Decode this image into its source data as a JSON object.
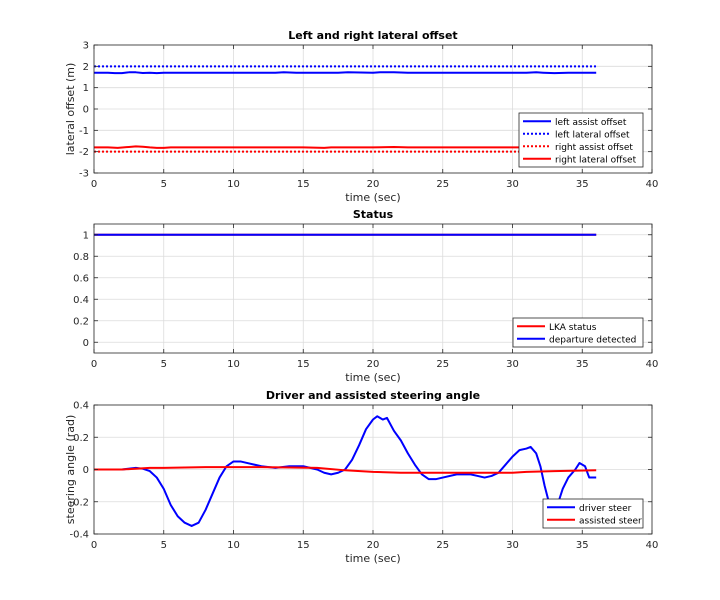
{
  "colors": {
    "background": "#ffffff",
    "axes": "#262626",
    "grid": "#dcdcdc",
    "blue": "#0000ff",
    "red": "#ff0000",
    "legend_border": "#262626"
  },
  "chart_data": [
    {
      "type": "line",
      "title": "Left and right lateral offset",
      "xlabel": "time (sec)",
      "ylabel": "lateral offset (m)",
      "xlim": [
        0,
        40
      ],
      "ylim": [
        -3,
        3
      ],
      "xticks": [
        0,
        5,
        10,
        15,
        20,
        25,
        30,
        35,
        40
      ],
      "yticks": [
        -3,
        -2,
        -1,
        0,
        1,
        2,
        3
      ],
      "xtick_labels": [
        "0",
        "5",
        "10",
        "15",
        "20",
        "25",
        "30",
        "35",
        "40"
      ],
      "ytick_labels": [
        "-3",
        "-2",
        "-1",
        "0",
        "1",
        "2",
        "3"
      ],
      "grid": true,
      "legend_position": "bottom-right",
      "series": [
        {
          "name": "left assist offset",
          "color": "blue",
          "style": "solid",
          "x": [
            0,
            1,
            1.5,
            2,
            2.5,
            3,
            3.5,
            4,
            4.5,
            5,
            7,
            10,
            13,
            13.6,
            14.5,
            16,
            17.5,
            18.2,
            20,
            20.5,
            21.5,
            22.5,
            30,
            31,
            31.7,
            32.2,
            33,
            34,
            36
          ],
          "y": [
            1.7,
            1.7,
            1.68,
            1.68,
            1.72,
            1.72,
            1.69,
            1.7,
            1.68,
            1.7,
            1.7,
            1.7,
            1.7,
            1.72,
            1.7,
            1.7,
            1.7,
            1.72,
            1.7,
            1.72,
            1.72,
            1.7,
            1.7,
            1.7,
            1.72,
            1.7,
            1.68,
            1.7,
            1.7
          ]
        },
        {
          "name": "left lateral offset",
          "color": "blue",
          "style": "dotted",
          "x": [
            0,
            36
          ],
          "y": [
            2,
            2
          ]
        },
        {
          "name": "right assist offset",
          "color": "red",
          "style": "dotted",
          "x": [
            0,
            36
          ],
          "y": [
            -2,
            -2
          ]
        },
        {
          "name": "right lateral offset",
          "color": "red",
          "style": "solid",
          "x": [
            0,
            1,
            1.7,
            2.5,
            3,
            3.5,
            4,
            4.5,
            5,
            5.5,
            10,
            15,
            16.5,
            17,
            18,
            20,
            21.5,
            22.5,
            25,
            30,
            31.5,
            32,
            33,
            36
          ],
          "y": [
            -1.8,
            -1.8,
            -1.82,
            -1.78,
            -1.75,
            -1.77,
            -1.8,
            -1.82,
            -1.82,
            -1.8,
            -1.8,
            -1.8,
            -1.82,
            -1.8,
            -1.8,
            -1.8,
            -1.78,
            -1.8,
            -1.8,
            -1.8,
            -1.8,
            -1.78,
            -1.8,
            -1.8
          ]
        }
      ]
    },
    {
      "type": "line",
      "title": "Status",
      "xlabel": "time (sec)",
      "ylabel": "",
      "xlim": [
        0,
        40
      ],
      "ylim": [
        -0.1,
        1.1
      ],
      "xticks": [
        0,
        5,
        10,
        15,
        20,
        25,
        30,
        35,
        40
      ],
      "yticks": [
        0,
        0.2,
        0.4,
        0.6,
        0.8,
        1
      ],
      "xtick_labels": [
        "0",
        "5",
        "10",
        "15",
        "20",
        "25",
        "30",
        "35",
        "40"
      ],
      "ytick_labels": [
        "0",
        "0.2",
        "0.4",
        "0.6",
        "0.8",
        "1"
      ],
      "grid": true,
      "legend_position": "bottom-right",
      "series": [
        {
          "name": "LKA status",
          "color": "red",
          "style": "solid",
          "x": [
            0,
            36
          ],
          "y": [
            1,
            1
          ]
        },
        {
          "name": "departure detected",
          "color": "blue",
          "style": "solid",
          "x": [
            0,
            36
          ],
          "y": [
            1,
            1
          ]
        }
      ]
    },
    {
      "type": "line",
      "title": "Driver and assisted steering angle",
      "xlabel": "time (sec)",
      "ylabel": "steering angle (rad)",
      "xlim": [
        0,
        40
      ],
      "ylim": [
        -0.4,
        0.4
      ],
      "xticks": [
        0,
        5,
        10,
        15,
        20,
        25,
        30,
        35,
        40
      ],
      "yticks": [
        -0.4,
        -0.2,
        0,
        0.2,
        0.4
      ],
      "xtick_labels": [
        "0",
        "5",
        "10",
        "15",
        "20",
        "25",
        "30",
        "35",
        "40"
      ],
      "ytick_labels": [
        "-0.4",
        "-0.2",
        "0",
        "0.2",
        "0.4"
      ],
      "grid": true,
      "legend_position": "bottom-right",
      "series": [
        {
          "name": "driver steer",
          "color": "blue",
          "style": "solid",
          "x": [
            0,
            2,
            3,
            3.5,
            4,
            4.5,
            5,
            5.5,
            6,
            6.5,
            7,
            7.5,
            8,
            8.5,
            9,
            9.5,
            10,
            10.5,
            11,
            12,
            13,
            14,
            15,
            15.5,
            16,
            16.5,
            17,
            17.5,
            18,
            18.5,
            19,
            19.5,
            20,
            20.3,
            20.7,
            21,
            21.5,
            22,
            22.5,
            23,
            23.5,
            24,
            24.5,
            25,
            26,
            27,
            27.5,
            28,
            28.5,
            29,
            29.5,
            30,
            30.5,
            31,
            31.3,
            31.7,
            32,
            32.3,
            32.6,
            33,
            33.3,
            33.6,
            34,
            34.5,
            34.8,
            35.2,
            35.5,
            36
          ],
          "y": [
            0,
            0,
            0.01,
            0.005,
            -0.01,
            -0.05,
            -0.12,
            -0.22,
            -0.29,
            -0.33,
            -0.35,
            -0.33,
            -0.25,
            -0.15,
            -0.05,
            0.02,
            0.05,
            0.05,
            0.04,
            0.02,
            0.01,
            0.02,
            0.02,
            0.01,
            0,
            -0.02,
            -0.03,
            -0.02,
            0,
            0.06,
            0.15,
            0.25,
            0.31,
            0.33,
            0.31,
            0.32,
            0.24,
            0.18,
            0.1,
            0.03,
            -0.03,
            -0.06,
            -0.06,
            -0.05,
            -0.03,
            -0.03,
            -0.04,
            -0.05,
            -0.04,
            -0.02,
            0.03,
            0.08,
            0.12,
            0.13,
            0.14,
            0.1,
            0.02,
            -0.1,
            -0.2,
            -0.22,
            -0.2,
            -0.12,
            -0.05,
            0,
            0.04,
            0.02,
            -0.05,
            -0.05
          ]
        },
        {
          "name": "assisted steer",
          "color": "red",
          "style": "solid",
          "x": [
            0,
            2,
            4,
            5,
            8,
            12,
            16,
            18,
            20,
            22,
            24,
            30,
            31,
            33,
            36
          ],
          "y": [
            0,
            0,
            0.01,
            0.01,
            0.015,
            0.015,
            0.01,
            -0.005,
            -0.015,
            -0.02,
            -0.02,
            -0.02,
            -0.015,
            -0.01,
            -0.005
          ]
        }
      ]
    }
  ]
}
